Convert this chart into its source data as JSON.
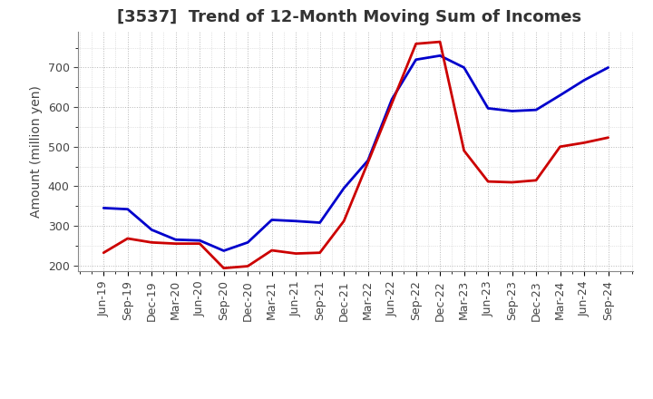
{
  "title": "[3537]  Trend of 12-Month Moving Sum of Incomes",
  "ylabel": "Amount (million yen)",
  "xlabels": [
    "Jun-19",
    "Sep-19",
    "Dec-19",
    "Mar-20",
    "Jun-20",
    "Sep-20",
    "Dec-20",
    "Mar-21",
    "Jun-21",
    "Sep-21",
    "Dec-21",
    "Mar-22",
    "Jun-22",
    "Sep-22",
    "Dec-22",
    "Mar-23",
    "Jun-23",
    "Sep-23",
    "Dec-23",
    "Mar-24",
    "Jun-24",
    "Sep-24"
  ],
  "ordinary_income": [
    345,
    342,
    290,
    265,
    263,
    237,
    258,
    315,
    312,
    308,
    395,
    465,
    620,
    720,
    730,
    700,
    597,
    590,
    593,
    630,
    668,
    700
  ],
  "net_income": [
    232,
    268,
    258,
    255,
    255,
    193,
    198,
    238,
    230,
    232,
    312,
    460,
    610,
    760,
    765,
    490,
    412,
    410,
    415,
    500,
    510,
    523
  ],
  "ordinary_income_color": "#0000cc",
  "net_income_color": "#cc0000",
  "background_color": "#ffffff",
  "plot_bg_color": "#ffffff",
  "grid_color": "#999999",
  "title_color": "#333333",
  "ylim": [
    185,
    790
  ],
  "yticks": [
    200,
    300,
    400,
    500,
    600,
    700
  ],
  "title_fontsize": 13,
  "axis_label_fontsize": 10,
  "tick_fontsize": 9,
  "legend_fontsize": 10,
  "line_width": 2.0
}
